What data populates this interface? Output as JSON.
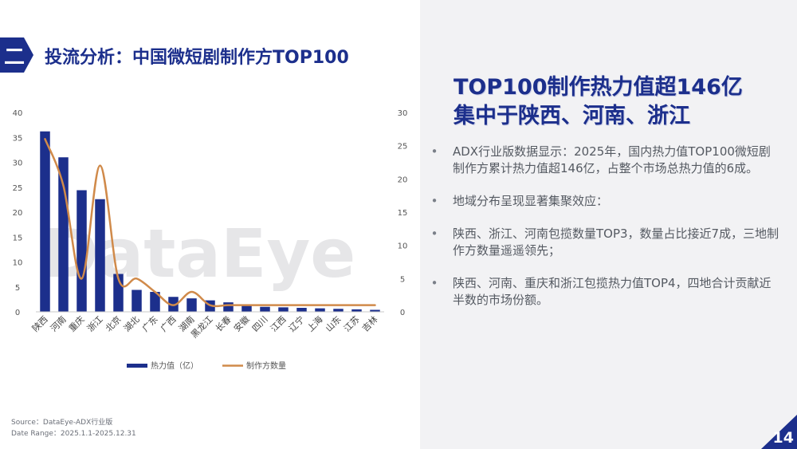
{
  "section": {
    "number": "二"
  },
  "page_title": "投流分析：中国微短剧制作方TOP100",
  "headline": {
    "line1": "TOP100制作热力值超146亿",
    "line2": "集中于陕西、河南、浙江"
  },
  "bullets": [
    "ADX行业版数据显示：2025年，国内热力值TOP100微短剧制作方累计热力值超146亿，占整个市场总热力值的6成。",
    "地域分布呈现显著集聚效应：",
    "陕西、浙江、河南包揽数量TOP3，数量占比接近7成，三地制作方数量遥遥领先；",
    "陕西、河南、重庆和浙江包揽热力值TOP4，四地合计贡献近半数的市场份额。"
  ],
  "bullet_glyph": "•",
  "watermark": "DataEye",
  "source_line": "Source：DataEye-ADX行业版",
  "date_range": "Date Range：2025.1.1-2025.12.31",
  "page_number": "14",
  "colors": {
    "navy": "#1c2f8c",
    "bar": "#1c2f8c",
    "line": "#d08a4a",
    "panel": "#f2f2f4"
  },
  "chart_data": {
    "type": "bar",
    "categories": [
      "陕西",
      "河南",
      "重庆",
      "浙江",
      "北京",
      "湖北",
      "广东",
      "广西",
      "湖南",
      "黑龙江",
      "长春",
      "安徽",
      "四川",
      "江西",
      "辽宁",
      "上海",
      "山东",
      "江苏",
      "吉林"
    ],
    "series": [
      {
        "name": "热力值（亿）",
        "type": "bar",
        "axis": "left",
        "values": [
          36.2,
          31.0,
          24.4,
          22.6,
          7.6,
          4.4,
          4.0,
          3.0,
          2.7,
          2.3,
          1.9,
          1.2,
          1.0,
          0.9,
          0.8,
          0.7,
          0.6,
          0.5,
          0.4
        ]
      },
      {
        "name": "制作方数量",
        "type": "line",
        "axis": "right",
        "values": [
          26,
          19,
          5,
          22,
          5,
          5,
          3,
          1,
          3,
          1,
          1,
          1,
          1,
          1,
          1,
          1,
          1,
          1,
          1
        ]
      }
    ],
    "y_left": {
      "min": 0,
      "max": 40,
      "ticks": [
        0,
        5,
        10,
        15,
        20,
        25,
        30,
        35,
        40
      ]
    },
    "y_right": {
      "min": 0,
      "max": 30,
      "ticks": [
        0,
        5,
        10,
        15,
        20,
        25,
        30
      ]
    },
    "grid": false,
    "legend_position": "bottom"
  }
}
